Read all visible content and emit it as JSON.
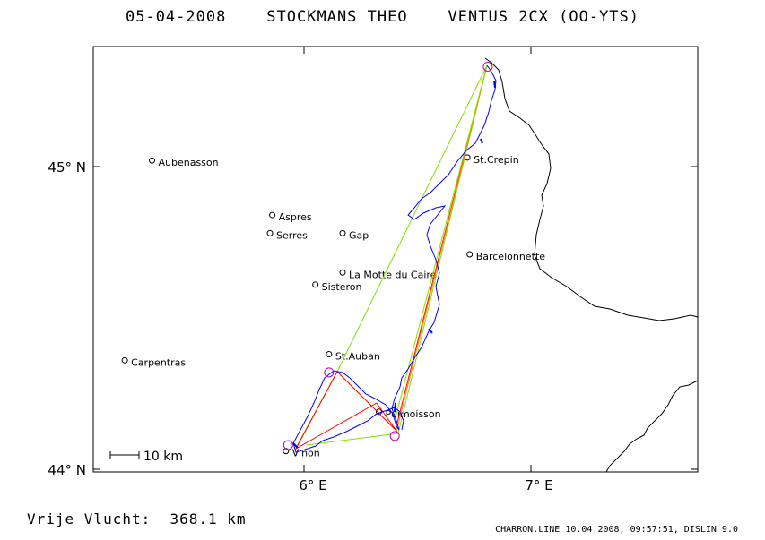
{
  "header": {
    "date": "05-04-2008",
    "pilot": "STOCKMANS THEO",
    "glider": "VENTUS 2CX (OO-YTS)"
  },
  "axes": {
    "lat_ticks": [
      "45° N",
      "44° N"
    ],
    "lon_ticks": [
      "6° E",
      "7° E"
    ]
  },
  "scale_bar": {
    "label": "10 km"
  },
  "places": [
    {
      "name": "Aubenasson",
      "lon": 5.33,
      "lat": 45.02
    },
    {
      "name": "Aspres",
      "lon": 5.86,
      "lat": 44.84
    },
    {
      "name": "Serres",
      "lon": 5.85,
      "lat": 44.78
    },
    {
      "name": "Gap",
      "lon": 6.17,
      "lat": 44.78
    },
    {
      "name": "La Motte du Caire",
      "lon": 6.17,
      "lat": 44.65
    },
    {
      "name": "Sisteron",
      "lon": 6.05,
      "lat": 44.61
    },
    {
      "name": "St.Crepin",
      "lon": 6.72,
      "lat": 45.03
    },
    {
      "name": "Barcelonnette",
      "lon": 6.73,
      "lat": 44.71
    },
    {
      "name": "St.Auban",
      "lon": 6.11,
      "lat": 44.38
    },
    {
      "name": "Carpentras",
      "lon": 5.21,
      "lat": 44.36
    },
    {
      "name": "Puimoisson",
      "lon": 6.33,
      "lat": 44.19
    },
    {
      "name": "Vinon",
      "lon": 5.92,
      "lat": 44.06
    }
  ],
  "footer": {
    "distance_label": "Vrije Vlucht:",
    "distance_value": "368.1 km",
    "file_info": "CHARRON.LINE 10.04.2008, 09:57:51, DISLIN 9.0"
  },
  "colors": {
    "track": "#0000ff",
    "leg_red": "#ff0000",
    "leg_green": "#80e000",
    "leg_orange": "#ff8800",
    "turnpoint": "#c000c0",
    "border": "#000000"
  },
  "turnpoints": [
    {
      "lon": 6.81,
      "lat": 45.33
    },
    {
      "lon": 6.11,
      "lat": 44.32
    },
    {
      "lon": 6.4,
      "lat": 44.11
    },
    {
      "lon": 5.93,
      "lat": 44.08
    }
  ]
}
